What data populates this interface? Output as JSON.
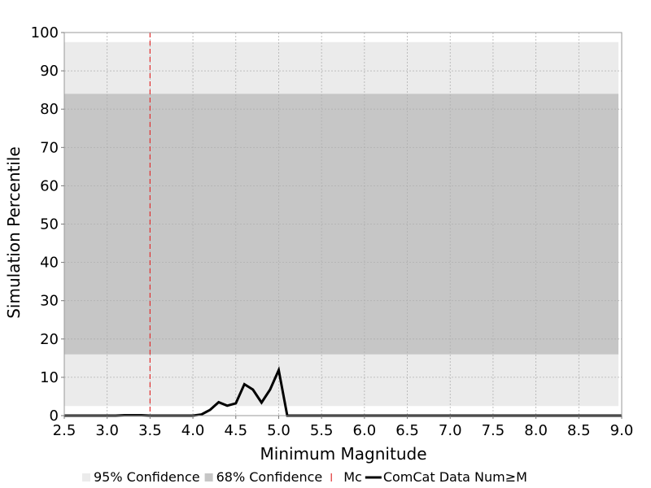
{
  "chart_data": {
    "type": "line",
    "title": "",
    "xlabel": "Minimum Magnitude",
    "ylabel": "Simulation Percentile",
    "xlim": [
      2.5,
      9.0
    ],
    "ylim": [
      0,
      100
    ],
    "x_ticks": [
      "2.5",
      "3.0",
      "3.5",
      "4.0",
      "4.5",
      "5.0",
      "5.5",
      "6.0",
      "6.5",
      "7.0",
      "7.5",
      "8.0",
      "8.5",
      "9.0"
    ],
    "y_ticks": [
      "0",
      "10",
      "20",
      "30",
      "40",
      "50",
      "60",
      "70",
      "80",
      "90",
      "100"
    ],
    "grid": true,
    "legend_position": "bottom",
    "bands": [
      {
        "name": "95% Confidence",
        "low": 2.5,
        "high": 97.5,
        "color": "#ebebeb"
      },
      {
        "name": "68% Confidence",
        "low": 16,
        "high": 84,
        "color": "#c6c6c6"
      }
    ],
    "mc": {
      "name": "Mc",
      "x": 3.5,
      "color": "#e03030"
    },
    "series": [
      {
        "name": "ComCat Data Num≥M",
        "color": "#000000",
        "x": [
          2.5,
          2.6,
          2.7,
          2.8,
          2.9,
          3.0,
          3.1,
          3.2,
          3.3,
          3.4,
          3.5,
          3.6,
          3.7,
          3.8,
          3.9,
          4.0,
          4.1,
          4.2,
          4.3,
          4.4,
          4.5,
          4.6,
          4.7,
          4.8,
          4.9,
          5.0,
          5.1,
          5.2,
          5.5,
          6.0,
          6.5,
          7.0,
          7.5,
          8.0,
          8.5,
          9.0
        ],
        "y": [
          0,
          0,
          0,
          0,
          0,
          0,
          0,
          0.1,
          0.1,
          0.1,
          0,
          0,
          0,
          0,
          0,
          0,
          0.3,
          1.5,
          3.5,
          2.6,
          3.2,
          8.2,
          6.8,
          3.4,
          6.8,
          11.9,
          0,
          0,
          0,
          0,
          0,
          0,
          0,
          0,
          0,
          0
        ]
      }
    ]
  }
}
